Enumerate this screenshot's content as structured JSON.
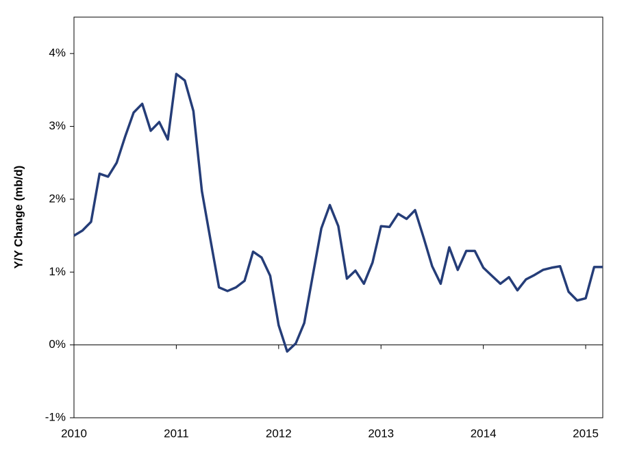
{
  "chart_data": {
    "type": "line",
    "y_label": "Y/Y Change (mb/d)",
    "x": [
      2010,
      2010.083,
      2010.167,
      2010.25,
      2010.333,
      2010.417,
      2010.5,
      2010.583,
      2010.667,
      2010.75,
      2010.833,
      2010.917,
      2011,
      2011.083,
      2011.167,
      2011.25,
      2011.333,
      2011.417,
      2011.5,
      2011.583,
      2011.667,
      2011.75,
      2011.833,
      2011.917,
      2012,
      2012.083,
      2012.167,
      2012.25,
      2012.333,
      2012.417,
      2012.5,
      2012.583,
      2012.667,
      2012.75,
      2012.833,
      2012.917,
      2013,
      2013.083,
      2013.167,
      2013.25,
      2013.333,
      2013.417,
      2013.5,
      2013.583,
      2013.667,
      2013.75,
      2013.833,
      2013.917,
      2014,
      2014.083,
      2014.167,
      2014.25,
      2014.333,
      2014.417,
      2014.5,
      2014.583,
      2014.667,
      2014.75,
      2014.833,
      2014.917,
      2015,
      2015.083,
      2015.167
    ],
    "series": [
      {
        "color": "#253d78",
        "values": [
          1.5,
          1.57,
          1.69,
          2.35,
          2.31,
          2.5,
          2.86,
          3.19,
          3.31,
          2.94,
          3.06,
          2.82,
          3.72,
          3.63,
          3.21,
          2.11,
          1.45,
          0.79,
          0.74,
          0.79,
          0.88,
          1.28,
          1.2,
          0.95,
          0.27,
          -0.09,
          0.02,
          0.3,
          0.95,
          1.6,
          1.92,
          1.63,
          0.91,
          1.02,
          0.84,
          1.13,
          1.63,
          1.62,
          1.8,
          1.73,
          1.85,
          1.47,
          1.08,
          0.84,
          1.34,
          1.03,
          1.29,
          1.29,
          1.06,
          0.95,
          0.84,
          0.93,
          0.75,
          0.9,
          0.96,
          1.03,
          1.06,
          1.08,
          0.73,
          0.61,
          0.64,
          1.07,
          1.07
        ]
      }
    ],
    "xlim": [
      2010,
      2015.167
    ],
    "xticks": [
      2010,
      2011,
      2012,
      2013,
      2014,
      2015
    ],
    "ylim": [
      -1,
      4.5
    ],
    "yticks": [
      {
        "value": -1,
        "label": "-1%"
      },
      {
        "value": 0,
        "label": "0%"
      },
      {
        "value": 1,
        "label": "1%"
      },
      {
        "value": 2,
        "label": "2%"
      },
      {
        "value": 3,
        "label": "3%"
      },
      {
        "value": 4,
        "label": "4%"
      }
    ]
  }
}
